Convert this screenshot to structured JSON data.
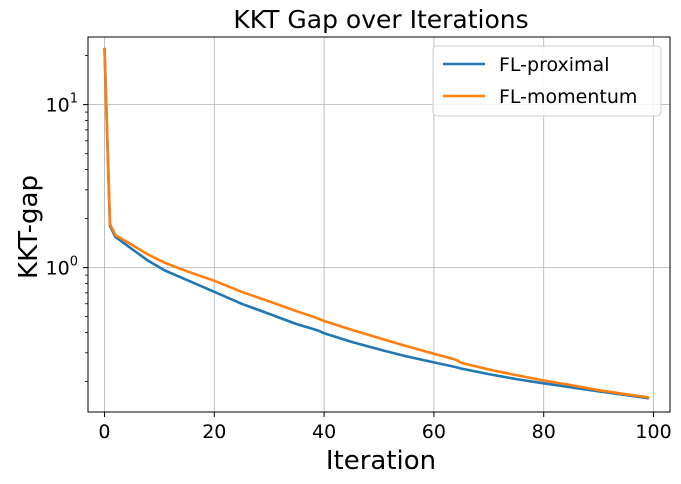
{
  "chart_data": {
    "type": "line",
    "title": "KKT Gap over Iterations",
    "xlabel": "Iteration",
    "ylabel": "KKT-gap",
    "xlim": [
      -3,
      103
    ],
    "ylim": [
      0.13,
      26
    ],
    "yscale": "log",
    "grid": true,
    "legend_position": "top-right",
    "x_ticks": [
      0,
      20,
      40,
      60,
      80,
      100
    ],
    "x_tick_labels": [
      "0",
      "20",
      "40",
      "60",
      "80",
      "100"
    ],
    "y_ticks": [
      1,
      10
    ],
    "y_tick_labels": [
      {
        "base": "10",
        "exp": "0"
      },
      {
        "base": "10",
        "exp": "1"
      }
    ],
    "series": [
      {
        "name": "FL-proximal",
        "color": "#1f77b4",
        "x": [
          0,
          1,
          2,
          5,
          8,
          11,
          15,
          20,
          25,
          30,
          35,
          38,
          39,
          40,
          45,
          50,
          55,
          60,
          64,
          65,
          70,
          75,
          80,
          85,
          90,
          95,
          99
        ],
        "y": [
          22,
          1.8,
          1.54,
          1.3,
          1.1,
          0.96,
          0.84,
          0.71,
          0.6,
          0.52,
          0.45,
          0.42,
          0.41,
          0.395,
          0.35,
          0.315,
          0.285,
          0.262,
          0.245,
          0.24,
          0.222,
          0.207,
          0.195,
          0.184,
          0.174,
          0.165,
          0.158
        ]
      },
      {
        "name": "FL-momentum",
        "color": "#ff7f0e",
        "x": [
          0,
          1,
          2,
          5,
          8,
          11,
          15,
          20,
          25,
          30,
          35,
          38,
          39,
          40,
          45,
          50,
          55,
          60,
          64,
          65,
          70,
          75,
          80,
          85,
          90,
          95,
          99
        ],
        "y": [
          22,
          1.85,
          1.58,
          1.38,
          1.2,
          1.07,
          0.95,
          0.83,
          0.71,
          0.62,
          0.54,
          0.5,
          0.485,
          0.47,
          0.415,
          0.37,
          0.33,
          0.296,
          0.272,
          0.26,
          0.237,
          0.219,
          0.203,
          0.19,
          0.177,
          0.167,
          0.16
        ]
      }
    ]
  }
}
